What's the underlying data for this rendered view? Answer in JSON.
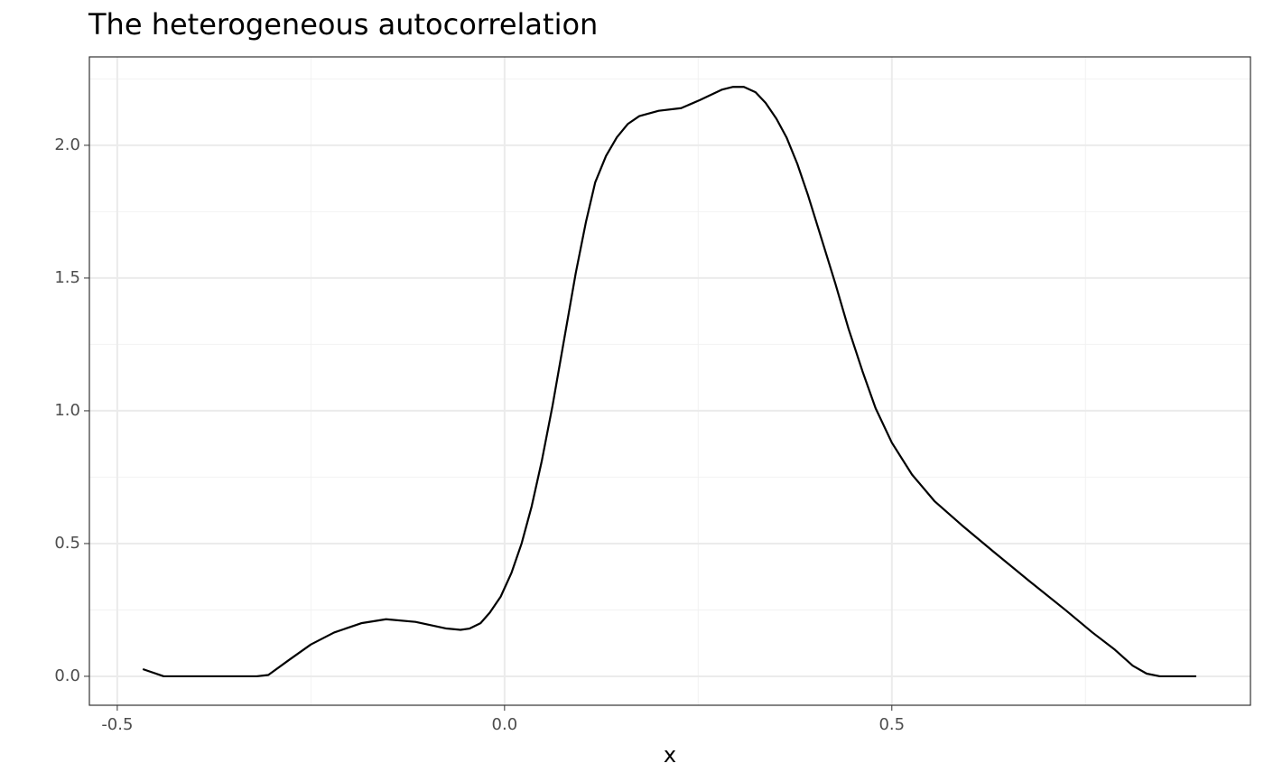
{
  "chart_data": {
    "type": "line",
    "title": "The heterogeneous autocorrelation",
    "x_label": "x",
    "x": [
      -0.467,
      -0.44,
      -0.32,
      -0.305,
      -0.279,
      -0.25,
      -0.22,
      -0.185,
      -0.153,
      -0.115,
      -0.075,
      -0.057,
      -0.045,
      -0.031,
      -0.019,
      -0.005,
      0.009,
      0.022,
      0.035,
      0.048,
      0.062,
      0.077,
      0.092,
      0.105,
      0.117,
      0.131,
      0.145,
      0.159,
      0.174,
      0.199,
      0.228,
      0.252,
      0.281,
      0.295,
      0.309,
      0.324,
      0.337,
      0.351,
      0.364,
      0.378,
      0.392,
      0.409,
      0.427,
      0.444,
      0.462,
      0.479,
      0.5,
      0.526,
      0.555,
      0.59,
      0.631,
      0.677,
      0.724,
      0.759,
      0.788,
      0.811,
      0.829,
      0.846,
      0.893
    ],
    "series": [
      {
        "color": "#000000",
        "values": [
          0.027,
          0,
          0,
          0.005,
          0.06,
          0.12,
          0.165,
          0.2,
          0.215,
          0.205,
          0.18,
          0.175,
          0.18,
          0.2,
          0.24,
          0.3,
          0.39,
          0.5,
          0.64,
          0.81,
          1.02,
          1.27,
          1.52,
          1.71,
          1.86,
          1.96,
          2.03,
          2.08,
          2.11,
          2.13,
          2.14,
          2.17,
          2.21,
          2.22,
          2.22,
          2.2,
          2.16,
          2.1,
          2.03,
          1.93,
          1.81,
          1.65,
          1.48,
          1.31,
          1.15,
          1.01,
          0.88,
          0.76,
          0.66,
          0.57,
          0.47,
          0.36,
          0.25,
          0.165,
          0.1,
          0.04,
          0.01,
          0,
          0
        ]
      }
    ],
    "xlim": [
      -0.536,
      0.963
    ],
    "ylim": [
      -0.109,
      2.333
    ],
    "xticks": [
      {
        "value": -0.5,
        "label": "-0.5"
      },
      {
        "value": 0,
        "label": "0.0"
      },
      {
        "value": 0.5,
        "label": "0.5"
      }
    ],
    "yticks": [
      {
        "value": 0,
        "label": "0.0"
      },
      {
        "value": 0.5,
        "label": "0.5"
      },
      {
        "value": 1,
        "label": "1.0"
      },
      {
        "value": 1.5,
        "label": "1.5"
      },
      {
        "value": 2,
        "label": "2.0"
      }
    ],
    "minor_xticks": [
      -0.25,
      0.25,
      0.75
    ],
    "minor_yticks": [
      0.25,
      0.75,
      1.25,
      1.75,
      2.25
    ],
    "grid": true
  }
}
